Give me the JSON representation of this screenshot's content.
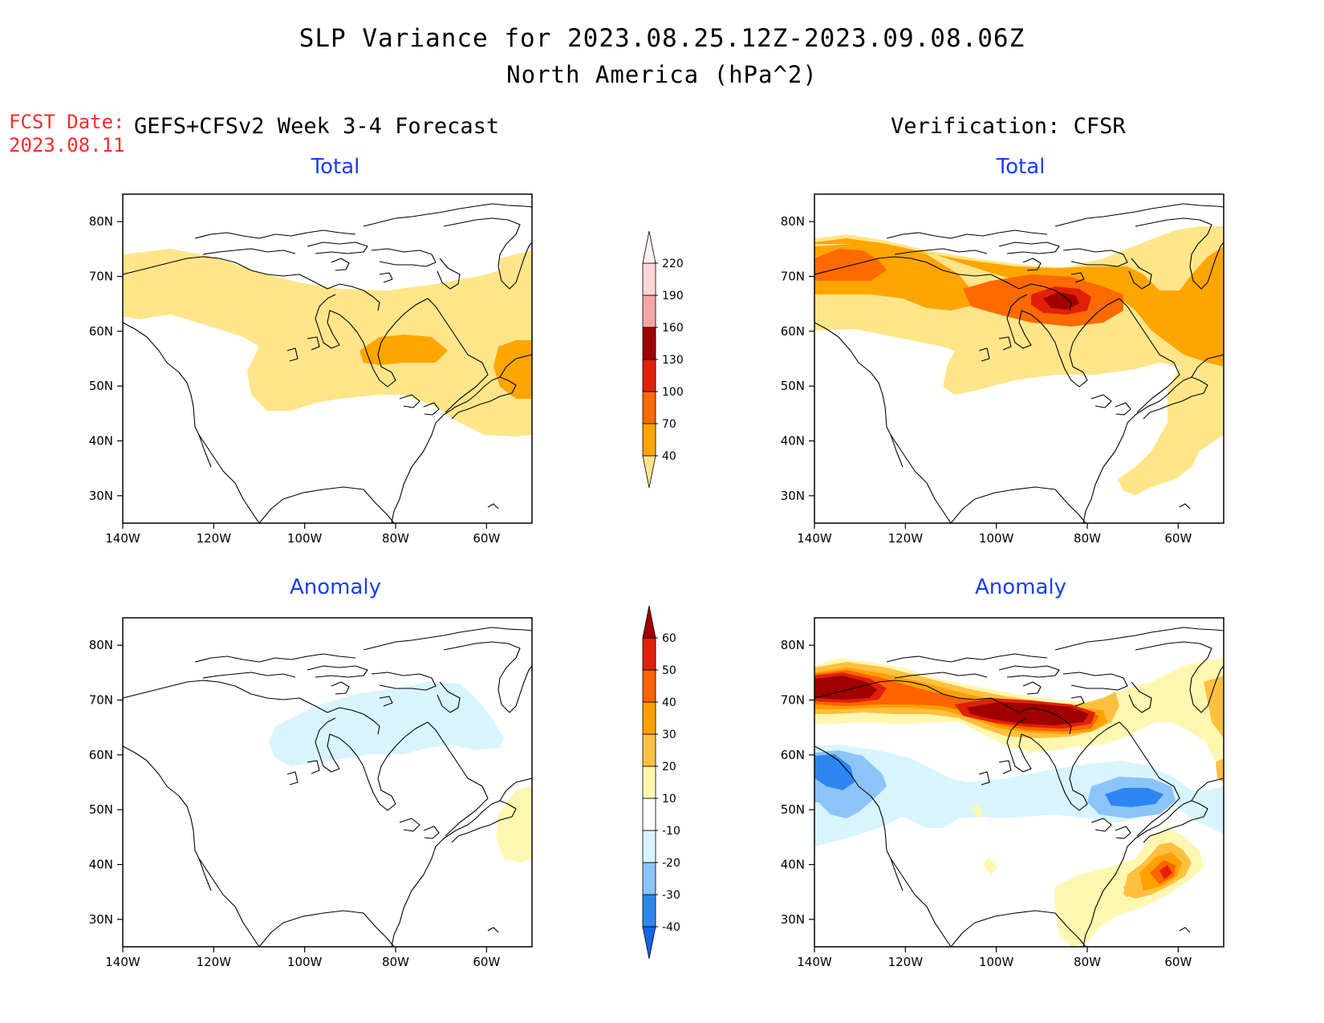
{
  "title": {
    "line1": "SLP Variance for 2023.08.25.12Z-2023.09.08.06Z",
    "line2": "North America (hPa^2)"
  },
  "fcst": {
    "label": "FCST Date:",
    "date": "2023.08.11"
  },
  "columns": {
    "left": "GEFS+CFSv2 Week 3-4 Forecast",
    "right": "Verification: CFSR"
  },
  "panels": {
    "fc_total": {
      "title": "Total"
    },
    "vf_total": {
      "title": "Total"
    },
    "fc_anom": {
      "title": "Anomaly"
    },
    "vf_anom": {
      "title": "Anomaly"
    }
  },
  "axes": {
    "lon_ticks": [
      "140W",
      "120W",
      "100W",
      "80W",
      "60W"
    ],
    "lon_values": [
      -140,
      -120,
      -100,
      -80,
      -60
    ],
    "lat_ticks": [
      "30N",
      "40N",
      "50N",
      "60N",
      "70N",
      "80N"
    ],
    "lat_values": [
      30,
      40,
      50,
      60,
      70,
      80
    ],
    "lon_range": [
      -140,
      -50
    ],
    "lat_range": [
      25,
      85
    ]
  },
  "colorbars": {
    "total": {
      "labels": [
        "40",
        "70",
        "100",
        "130",
        "160",
        "190",
        "220"
      ],
      "colors": [
        "#ffe58a",
        "#ffa500",
        "#ff6a00",
        "#e0200a",
        "#a00000",
        "#f4a6a6",
        "#ffd6d6",
        "#fff0f0"
      ]
    },
    "anomaly": {
      "labels": [
        "-40",
        "-30",
        "-20",
        "-10",
        "10",
        "20",
        "30",
        "40",
        "50",
        "60"
      ],
      "colors": [
        "#1565e0",
        "#2d86f0",
        "#8cc4f8",
        "#d8f4ff",
        "#ffffff",
        "#fff7b0",
        "#ffc040",
        "#ffa000",
        "#ff6400",
        "#e0200a",
        "#a00000"
      ]
    }
  },
  "colors": {
    "c40": "#ffe58a",
    "c70": "#ffa500",
    "c100": "#ff6a00",
    "c130": "#e0200a",
    "c160": "#a00000",
    "a_neg10": "#d8f4ff",
    "a_neg20": "#8cc4f8",
    "a_neg30": "#2d86f0",
    "a_neg40": "#1565e0",
    "a_pos10": "#fff7b0",
    "a_pos20": "#ffc040",
    "a_pos30": "#ffa000",
    "a_pos40": "#ff6400",
    "a_pos50": "#e0200a",
    "a_pos60": "#a00000",
    "title_blue": "#1a3cff",
    "fcst_red": "#ff2a2a"
  }
}
